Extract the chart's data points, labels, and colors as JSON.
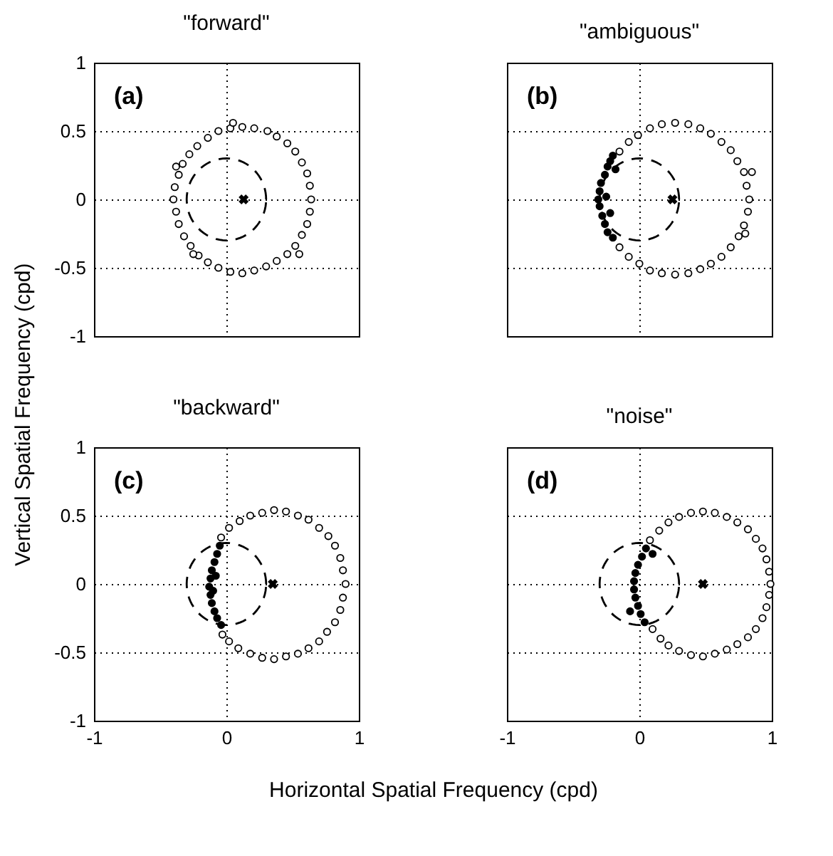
{
  "chart_data": [
    {
      "type": "scatter",
      "title": "\"forward\"",
      "annotations": [
        "(a)"
      ],
      "ylabel": "Vertical Spatial Frequency (cpd)",
      "xlim": [
        -1,
        1
      ],
      "ylim": [
        -1,
        1
      ],
      "xticks": [
        -1,
        0,
        1
      ],
      "yticks": [
        -1,
        -0.5,
        0,
        0.5,
        1
      ],
      "grid": true,
      "tick_labels": "y",
      "series": [
        {
          "marker": "circle",
          "x": [
            0.64,
            0.63,
            0.61,
            0.57,
            0.52,
            0.46,
            0.38,
            0.31,
            0.21,
            0.12,
            0.03,
            -0.06,
            -0.14,
            -0.22,
            -0.28,
            -0.33,
            -0.36,
            -0.39,
            -0.4,
            -0.38,
            -0.36,
            -0.32,
            -0.27,
            -0.21,
            -0.14,
            -0.06,
            0.03,
            0.12,
            0.21,
            0.3,
            0.38,
            0.46,
            0.52,
            0.57,
            0.61,
            0.63,
            -0.38,
            0.05,
            0.55,
            -0.25
          ],
          "values": [
            0.0,
            0.1,
            0.19,
            0.27,
            0.35,
            0.41,
            0.46,
            0.5,
            0.52,
            0.53,
            0.52,
            0.5,
            0.45,
            0.39,
            0.33,
            0.26,
            0.18,
            0.09,
            0.0,
            -0.09,
            -0.18,
            -0.27,
            -0.34,
            -0.41,
            -0.46,
            -0.5,
            -0.53,
            -0.54,
            -0.52,
            -0.49,
            -0.45,
            -0.4,
            -0.34,
            -0.26,
            -0.18,
            -0.09,
            0.24,
            0.56,
            -0.4,
            -0.4
          ]
        },
        {
          "type": "scatter",
          "marker": "cross",
          "color": "#000000",
          "x": [
            0.13
          ],
          "values": [
            0
          ]
        }
      ]
    },
    {
      "type": "scatter",
      "title": "\"ambiguous\"",
      "annotations": [
        "(b)"
      ],
      "xlim": [
        -1,
        1
      ],
      "ylim": [
        -1,
        1
      ],
      "xticks": [
        -1,
        0,
        1
      ],
      "yticks": [
        -1,
        -0.5,
        0,
        0.5,
        1
      ],
      "grid": true,
      "tick_labels": false,
      "series": [
        {
          "marker": "circle",
          "x": [
            0.83,
            0.81,
            0.79,
            0.74,
            0.69,
            0.62,
            0.54,
            0.46,
            0.37,
            0.27,
            0.17,
            0.08,
            -0.01,
            -0.08,
            -0.15,
            -0.15,
            -0.08,
            0.0,
            0.08,
            0.17,
            0.27,
            0.37,
            0.46,
            0.54,
            0.62,
            0.69,
            0.75,
            0.79,
            0.82,
            0.85,
            0.8
          ],
          "values": [
            0.0,
            0.1,
            0.2,
            0.28,
            0.36,
            0.42,
            0.48,
            0.52,
            0.55,
            0.56,
            0.55,
            0.52,
            0.47,
            0.42,
            0.35,
            -0.35,
            -0.42,
            -0.47,
            -0.52,
            -0.54,
            -0.55,
            -0.54,
            -0.51,
            -0.47,
            -0.42,
            -0.35,
            -0.27,
            -0.19,
            -0.09,
            0.2,
            -0.25
          ]
        },
        {
          "marker": "circle",
          "color": "#000000",
          "x": [
            -0.2,
            -0.22,
            -0.24,
            -0.26,
            -0.29,
            -0.3,
            -0.31,
            -0.3,
            -0.28,
            -0.26,
            -0.24,
            -0.2,
            -0.18,
            -0.25,
            -0.22
          ],
          "values": [
            0.32,
            0.28,
            0.24,
            0.18,
            0.12,
            0.06,
            0.0,
            -0.05,
            -0.12,
            -0.18,
            -0.24,
            -0.28,
            0.22,
            0.02,
            -0.1
          ]
        },
        {
          "type": "scatter",
          "marker": "cross",
          "color": "#000000",
          "x": [
            0.25
          ],
          "values": [
            0
          ]
        }
      ]
    },
    {
      "type": "scatter",
      "title": "\"backward\"",
      "annotations": [
        "(c)"
      ],
      "xlabel": "Horizontal Spatial Frequency (cpd)",
      "xlim": [
        -1,
        1
      ],
      "ylim": [
        -1,
        1
      ],
      "xticks": [
        -1,
        0,
        1
      ],
      "yticks": [
        -1,
        -0.5,
        0,
        0.5,
        1
      ],
      "grid": true,
      "series": [
        {
          "marker": "circle",
          "x": [
            0.9,
            0.88,
            0.86,
            0.82,
            0.77,
            0.7,
            0.62,
            0.54,
            0.45,
            0.36,
            0.27,
            0.18,
            0.1,
            0.02,
            -0.04,
            -0.03,
            0.02,
            0.09,
            0.18,
            0.27,
            0.36,
            0.45,
            0.54,
            0.62,
            0.7,
            0.76,
            0.82,
            0.86,
            0.88
          ],
          "values": [
            0.0,
            0.1,
            0.19,
            0.28,
            0.35,
            0.41,
            0.47,
            0.5,
            0.53,
            0.54,
            0.52,
            0.5,
            0.46,
            0.41,
            0.34,
            -0.37,
            -0.42,
            -0.47,
            -0.51,
            -0.54,
            -0.55,
            -0.53,
            -0.51,
            -0.47,
            -0.42,
            -0.35,
            -0.28,
            -0.19,
            -0.1
          ]
        },
        {
          "marker": "circle",
          "color": "#000000",
          "x": [
            -0.05,
            -0.07,
            -0.09,
            -0.11,
            -0.12,
            -0.13,
            -0.12,
            -0.11,
            -0.09,
            -0.07,
            -0.04,
            -0.08,
            -0.1
          ],
          "values": [
            0.28,
            0.22,
            0.16,
            0.1,
            0.04,
            -0.02,
            -0.08,
            -0.14,
            -0.2,
            -0.25,
            -0.3,
            0.06,
            -0.05
          ]
        },
        {
          "type": "scatter",
          "marker": "cross",
          "color": "#000000",
          "x": [
            0.35
          ],
          "values": [
            0
          ]
        }
      ]
    },
    {
      "type": "scatter",
      "title": "\"noise\"",
      "annotations": [
        "(d)"
      ],
      "xlim": [
        -1,
        1
      ],
      "ylim": [
        -1,
        1
      ],
      "xticks": [
        -1,
        0,
        1
      ],
      "yticks": [
        -1,
        -0.5,
        0,
        0.5,
        1
      ],
      "grid": true,
      "tick_labels": "x",
      "series": [
        {
          "marker": "circle",
          "x": [
            0.99,
            0.98,
            0.96,
            0.93,
            0.88,
            0.82,
            0.74,
            0.66,
            0.57,
            0.48,
            0.39,
            0.3,
            0.22,
            0.15,
            0.08,
            0.1,
            0.16,
            0.22,
            0.3,
            0.39,
            0.48,
            0.57,
            0.66,
            0.74,
            0.82,
            0.88,
            0.93,
            0.96,
            0.98
          ],
          "values": [
            0.0,
            0.09,
            0.18,
            0.26,
            0.33,
            0.4,
            0.45,
            0.49,
            0.52,
            0.53,
            0.52,
            0.49,
            0.45,
            0.39,
            0.32,
            -0.33,
            -0.4,
            -0.45,
            -0.49,
            -0.52,
            -0.53,
            -0.51,
            -0.48,
            -0.44,
            -0.39,
            -0.33,
            -0.25,
            -0.17,
            -0.08
          ]
        },
        {
          "marker": "circle",
          "color": "#000000",
          "x": [
            0.05,
            0.02,
            -0.01,
            -0.03,
            -0.04,
            -0.04,
            -0.03,
            -0.01,
            0.01,
            0.04,
            0.1,
            -0.07
          ],
          "values": [
            0.26,
            0.2,
            0.14,
            0.08,
            0.02,
            -0.04,
            -0.1,
            -0.16,
            -0.22,
            -0.28,
            0.22,
            -0.2
          ]
        },
        {
          "type": "scatter",
          "marker": "cross",
          "color": "#000000",
          "x": [
            0.48
          ],
          "values": [
            0
          ]
        }
      ]
    }
  ]
}
